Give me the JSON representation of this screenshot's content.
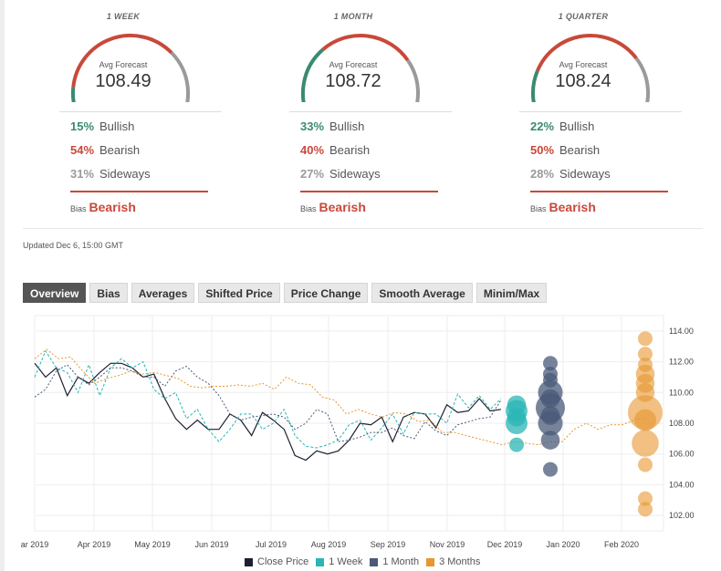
{
  "panels": [
    {
      "title": "1 WEEK",
      "avg_label": "Avg Forecast",
      "avg_value": "108.49",
      "bullish_pct": "15%",
      "bullish_label": "Bullish",
      "bearish_pct": "54%",
      "bearish_label": "Bearish",
      "sideways_pct": "31%",
      "sideways_label": "Sideways",
      "bias_label": "Bias",
      "bias_value": "Bearish",
      "shares": [
        0.15,
        0.54,
        0.31
      ]
    },
    {
      "title": "1 MONTH",
      "avg_label": "Avg Forecast",
      "avg_value": "108.72",
      "bullish_pct": "33%",
      "bullish_label": "Bullish",
      "bearish_pct": "40%",
      "bearish_label": "Bearish",
      "sideways_pct": "27%",
      "sideways_label": "Sideways",
      "bias_label": "Bias",
      "bias_value": "Bearish",
      "shares": [
        0.33,
        0.4,
        0.27
      ]
    },
    {
      "title": "1 QUARTER",
      "avg_label": "Avg Forecast",
      "avg_value": "108.24",
      "bullish_pct": "22%",
      "bullish_label": "Bullish",
      "bearish_pct": "50%",
      "bearish_label": "Bearish",
      "sideways_pct": "28%",
      "sideways_label": "Sideways",
      "bias_label": "Bias",
      "bias_value": "Bearish",
      "shares": [
        0.22,
        0.5,
        0.28
      ]
    }
  ],
  "updated": "Updated Dec 6, 15:00 GMT",
  "tabs": [
    "Overview",
    "Bias",
    "Averages",
    "Shifted Price",
    "Price Change",
    "Smooth Average",
    "Minim/Max"
  ],
  "colors": {
    "bullish": "#3a8a72",
    "bearish": "#c8493a",
    "sideways": "#9a9a9a",
    "close": "#1d2030",
    "week": "#2bb5b5",
    "month": "#4a5a78",
    "quarter": "#e8962e"
  },
  "chart_data": {
    "type": "line",
    "x_tick_labels": [
      "ar 2019",
      "Apr 2019",
      "May 2019",
      "Jun 2019",
      "Jul 2019",
      "Aug 2019",
      "Sep 2019",
      "Nov 2019",
      "Dec 2019",
      "Jan 2020",
      "Feb 2020"
    ],
    "y_tick_labels": [
      "102.00",
      "104.00",
      "106.00",
      "108.00",
      "110.00",
      "112.00",
      "114.00"
    ],
    "ylim": [
      101,
      115
    ],
    "grid": true,
    "legend_position": "bottom",
    "series": [
      {
        "name": "Close Price",
        "values": [
          111.9,
          111.0,
          111.6,
          109.8,
          111.0,
          110.6,
          111.3,
          111.9,
          111.9,
          111.6,
          111.0,
          111.2,
          109.6,
          108.3,
          107.6,
          108.2,
          107.6,
          107.6,
          108.6,
          108.2,
          107.2,
          108.7,
          108.2,
          107.6,
          105.9,
          105.6,
          106.2,
          106.0,
          106.2,
          106.9,
          108.0,
          107.9,
          108.4,
          106.8,
          108.4,
          108.7,
          108.6,
          107.7,
          109.2,
          108.7,
          108.8,
          109.6,
          108.8,
          108.9
        ]
      },
      {
        "name": "1 Week",
        "values": [
          111.0,
          112.7,
          111.6,
          111.3,
          110.0,
          111.8,
          109.8,
          111.6,
          112.2,
          111.6,
          112.0,
          110.2,
          109.6,
          110.0,
          108.3,
          108.9,
          107.6,
          106.8,
          107.6,
          108.6,
          108.6,
          107.6,
          108.0,
          108.9,
          107.2,
          106.5,
          106.4,
          106.6,
          106.9,
          107.9,
          108.2,
          106.9,
          107.7,
          108.6,
          107.3,
          108.7,
          108.6,
          108.6,
          108.0,
          109.9,
          109.0,
          109.8,
          108.9,
          109.6
        ]
      },
      {
        "name": "1 Month",
        "values": [
          109.7,
          110.2,
          111.4,
          111.8,
          111.0,
          110.5,
          111.0,
          111.6,
          111.6,
          111.4,
          111.0,
          111.0,
          110.4,
          111.4,
          111.7,
          111.0,
          110.6,
          109.8,
          108.6,
          108.2,
          108.4,
          108.5,
          108.6,
          108.4,
          107.6,
          108.0,
          108.9,
          108.6,
          106.8,
          106.9,
          107.1,
          107.4,
          107.4,
          107.7,
          107.2,
          107.0,
          108.1,
          107.5,
          107.2,
          107.9,
          108.1,
          108.3,
          108.4,
          109.5
        ]
      },
      {
        "name": "3 Months",
        "values": [
          112.2,
          112.8,
          112.2,
          112.3,
          111.4,
          110.6,
          110.9,
          111.1,
          111.4,
          111.2,
          111.3,
          111.1,
          110.9,
          110.4,
          110.3,
          110.4,
          110.4,
          110.5,
          110.4,
          110.6,
          110.2,
          111.0,
          110.6,
          110.5,
          109.7,
          109.5,
          108.6,
          108.9,
          108.6,
          108.4,
          108.7,
          108.6,
          108.1,
          108.2,
          107.4,
          107.4,
          107.2,
          107.0,
          106.8,
          106.6,
          106.8,
          106.7,
          106.6,
          106.8,
          106.8,
          107.6,
          108.0,
          107.6,
          107.9,
          107.9,
          108.2,
          108.4
        ]
      }
    ],
    "forecast_bubbles": {
      "1 Week": [
        {
          "value": 109.2,
          "size": 2
        },
        {
          "value": 108.8,
          "size": 3
        },
        {
          "value": 108.4,
          "size": 2
        },
        {
          "value": 108.0,
          "size": 3
        },
        {
          "value": 106.6,
          "size": 1
        }
      ],
      "1 Month": [
        {
          "value": 111.9,
          "size": 1
        },
        {
          "value": 111.2,
          "size": 1
        },
        {
          "value": 110.8,
          "size": 1
        },
        {
          "value": 110.0,
          "size": 4
        },
        {
          "value": 109.6,
          "size": 2
        },
        {
          "value": 109.0,
          "size": 6
        },
        {
          "value": 108.5,
          "size": 2
        },
        {
          "value": 108.0,
          "size": 4
        },
        {
          "value": 106.9,
          "size": 2
        },
        {
          "value": 105.0,
          "size": 1
        }
      ],
      "3 Months": [
        {
          "value": 113.5,
          "size": 1
        },
        {
          "value": 112.5,
          "size": 1
        },
        {
          "value": 111.8,
          "size": 1
        },
        {
          "value": 111.2,
          "size": 2
        },
        {
          "value": 110.6,
          "size": 2
        },
        {
          "value": 110.0,
          "size": 2
        },
        {
          "value": 108.7,
          "size": 9
        },
        {
          "value": 108.2,
          "size": 3
        },
        {
          "value": 106.7,
          "size": 5
        },
        {
          "value": 105.3,
          "size": 1
        },
        {
          "value": 103.1,
          "size": 1
        },
        {
          "value": 102.4,
          "size": 1
        }
      ]
    }
  }
}
